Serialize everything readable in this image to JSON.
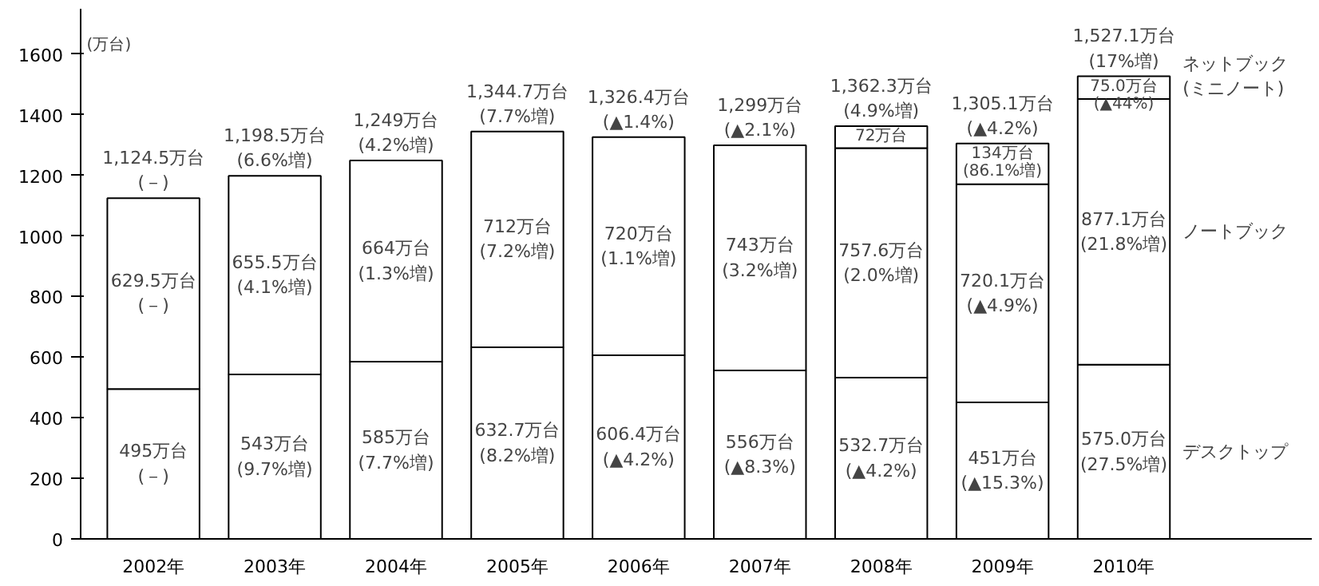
{
  "chart_data": {
    "type": "bar",
    "stacked": true,
    "ylabel": "(万台)",
    "categories": [
      "2002年",
      "2003年",
      "2004年",
      "2005年",
      "2006年",
      "2007年",
      "2008年",
      "2009年",
      "2010年"
    ],
    "series": [
      {
        "name": "デスクトップ",
        "color": "#ffffff",
        "values": [
          495,
          543,
          585,
          632.7,
          606.4,
          556,
          532.7,
          451,
          575.0
        ],
        "value_labels": [
          "495万台\n(－)",
          "543万台\n(9.7%増)",
          "585万台\n(7.7%増)",
          "632.7万台\n(8.2%増)",
          "606.4万台\n(▲4.2%)",
          "556万台\n(▲8.3%)",
          "532.7万台\n(▲4.2%)",
          "451万台\n(▲15.3%)",
          "575.0万台\n(27.5%増)"
        ]
      },
      {
        "name": "ノートブック",
        "color": "#ffffff",
        "values": [
          629.5,
          655.5,
          664,
          712,
          720,
          743,
          757.6,
          720.1,
          877.1
        ],
        "value_labels": [
          "629.5万台\n(－)",
          "655.5万台\n(4.1%増)",
          "664万台\n(1.3%増)",
          "712万台\n(7.2%増)",
          "720万台\n(1.1%増)",
          "743万台\n(3.2%増)",
          "757.6万台\n(2.0%増)",
          "720.1万台\n(▲4.9%)",
          "877.1万台\n(21.8%増)"
        ]
      },
      {
        "name": "ネットブック\n(ミニノート)",
        "color": "#ffffff",
        "values": [
          null,
          null,
          null,
          null,
          null,
          null,
          72,
          134,
          75.0
        ],
        "value_labels": [
          null,
          null,
          null,
          null,
          null,
          null,
          "72万台",
          "134万台\n(86.1%増)",
          "75.0万台\n(▲44%)"
        ]
      }
    ],
    "totals": [
      "1,124.5万台\n(－)",
      "1,198.5万台\n(6.6%増)",
      "1,249万台\n(4.2%増)",
      "1,344.7万台\n(7.7%増)",
      "1,326.4万台\n(▲1.4%)",
      "1,299万台\n(▲2.1%)",
      "1,362.3万台\n(4.9%増)",
      "1,305.1万台\n(▲4.2%)",
      "1,527.1万台\n(17%増)"
    ],
    "ylim": [
      0,
      1750
    ],
    "yticks": [
      0,
      200,
      400,
      600,
      800,
      1000,
      1200,
      1400,
      1600
    ],
    "grid": false
  }
}
